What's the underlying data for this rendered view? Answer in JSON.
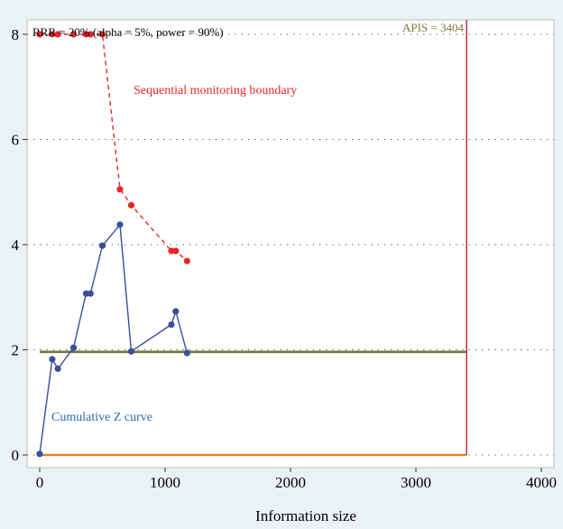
{
  "chart_data": {
    "type": "line",
    "xlabel": "Information size",
    "ylabel": "",
    "xlim": [
      0,
      4000
    ],
    "ylim": [
      0,
      8
    ],
    "x_ticks": [
      "0",
      "1000",
      "2000",
      "3000",
      "4000"
    ],
    "y_ticks": [
      "0",
      "2",
      "4",
      "6",
      "8"
    ],
    "grid": "horizontal dotted",
    "annotations": {
      "header": "RRR = 20% (alpha = 5%, power = 90%)",
      "apis_label": "APIS = 3404",
      "boundary_label": "Sequential monitoring boundary",
      "z_label": "Cumulative Z curve"
    },
    "apis_x": 3404,
    "conventional_boundary_y": 1.96,
    "zero_line_y": 0,
    "series": [
      {
        "name": "Sequential monitoring boundary",
        "color": "#e8262b",
        "style": "dashed",
        "x": [
          0,
          100,
          145,
          270,
          370,
          405,
          500,
          640,
          730,
          1050,
          1085,
          1175
        ],
        "y": [
          8,
          8,
          8,
          8,
          8,
          8,
          8,
          5.05,
          4.75,
          3.88,
          3.88,
          3.69
        ]
      },
      {
        "name": "Cumulative Z curve",
        "color": "#3a4e98",
        "style": "solid",
        "x": [
          0,
          100,
          145,
          270,
          370,
          405,
          500,
          640,
          730,
          1050,
          1085,
          1175
        ],
        "y": [
          0.02,
          1.82,
          1.64,
          2.04,
          3.07,
          3.07,
          3.98,
          4.38,
          1.97,
          2.48,
          2.73,
          1.94
        ]
      }
    ],
    "colors": {
      "background": "#eaf2f3",
      "plot_area": "#ffffff",
      "boundary": "#e8262b",
      "z_curve": "#3a4e98",
      "conventional_line": "#6b7a3a",
      "zero_line": "#e87a1c",
      "apis_line": "#b5253a",
      "z_label_text": "#2f6bb3",
      "apis_text": "#7a7a3a"
    }
  }
}
